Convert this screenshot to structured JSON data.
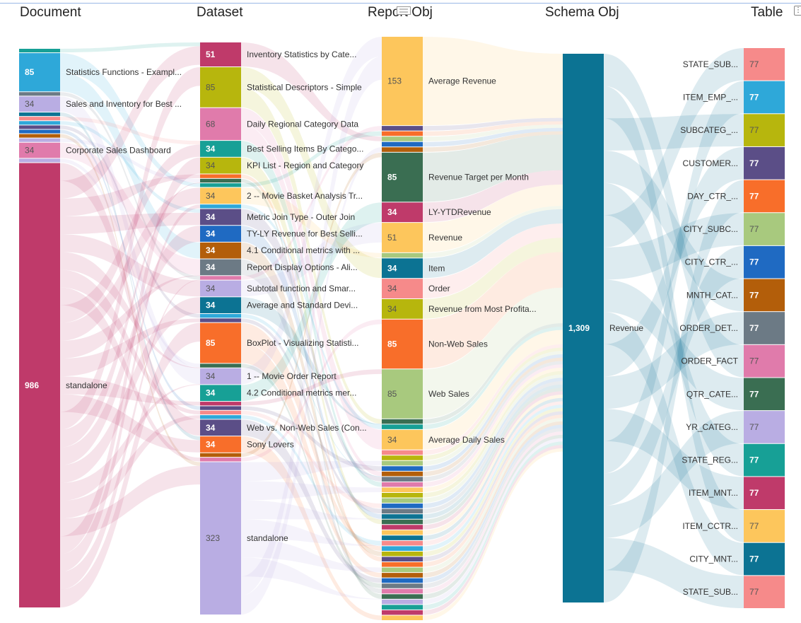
{
  "header": {
    "columns": [
      "Document",
      "Dataset",
      "Report Obj",
      "Schema Obj",
      "Table"
    ],
    "menu_icon": "more-options-icon",
    "drag_icon": "drag-handle-icon"
  },
  "chart_data": {
    "type": "sankey",
    "columns": [
      {
        "title": "Document",
        "nodes": [
          {
            "value": 8,
            "color": "#17a096"
          },
          {
            "value": 85,
            "label": "Statistics Functions - Exampl...",
            "color": "#2ea8d9",
            "show_value": true
          },
          {
            "value": 8,
            "color": "#6c7a85"
          },
          {
            "value": 34,
            "label": "Sales and Inventory for Best ...",
            "color": "#b9ade3",
            "show_value": true
          },
          {
            "value": 8,
            "color": "#0c7393"
          },
          {
            "value": 8,
            "color": "#f68a8a"
          },
          {
            "value": 8,
            "color": "#2ea8d9"
          },
          {
            "value": 8,
            "color": "#5b4e87"
          },
          {
            "value": 8,
            "color": "#1f6ac2"
          },
          {
            "value": 8,
            "color": "#b35e0a"
          },
          {
            "value": 8,
            "color": "#b9ade3"
          },
          {
            "value": 34,
            "label": "Corporate Sales Dashboard",
            "color": "#e07bab",
            "show_value": true
          },
          {
            "value": 8,
            "color": "#b9ade3"
          },
          {
            "value": 986,
            "label": "standalone",
            "color": "#bf3a6a",
            "show_value": true
          }
        ]
      },
      {
        "title": "Dataset",
        "nodes": [
          {
            "value": 51,
            "label": "Inventory Statistics by Cate...",
            "color": "#bf3a6a",
            "show_value": true
          },
          {
            "value": 85,
            "label": "Statistical Descriptors - Simple",
            "color": "#b7b60d",
            "show_value": true
          },
          {
            "value": 68,
            "label": "Daily Regional Category Data",
            "color": "#e07bab",
            "show_value": true
          },
          {
            "value": 34,
            "label": "Best Selling Items By Catego...",
            "color": "#17a096",
            "show_value": true
          },
          {
            "value": 34,
            "label": "KPI List - Region and Category",
            "color": "#b7b60d",
            "show_value": true
          },
          {
            "value": 8,
            "color": "#f86e2a"
          },
          {
            "value": 8,
            "color": "#3a6e52"
          },
          {
            "value": 8,
            "color": "#17a096"
          },
          {
            "value": 34,
            "label": "2 -- Movie Basket Analysis Tr...",
            "color": "#fdc65c",
            "show_value": true
          },
          {
            "value": 8,
            "color": "#2ea8d9"
          },
          {
            "value": 34,
            "label": "Metric Join Type - Outer Join",
            "color": "#5b4e87",
            "show_value": true
          },
          {
            "value": 34,
            "label": "TY-LY Revenue for Best Selli...",
            "color": "#1f6ac2",
            "show_value": true
          },
          {
            "value": 34,
            "label": "4.1 Conditional metrics with ...",
            "color": "#b35e0a",
            "show_value": true
          },
          {
            "value": 34,
            "label": "Report Display Options - Ali...",
            "color": "#6c7a85",
            "show_value": true
          },
          {
            "value": 8,
            "color": "#e07bab"
          },
          {
            "value": 34,
            "label": "Subtotal function and Smar...",
            "color": "#b9ade3",
            "show_value": true
          },
          {
            "value": 34,
            "label": "Average and Standard Devi...",
            "color": "#0c7393",
            "show_value": true
          },
          {
            "value": 8,
            "color": "#2ea8d9"
          },
          {
            "value": 8,
            "color": "#5b4e87"
          },
          {
            "value": 85,
            "label": "BoxPlot - Visualizing Statisti...",
            "color": "#f86e2a",
            "show_value": true
          },
          {
            "value": 8,
            "color": "#3a6e52"
          },
          {
            "value": 34,
            "label": "1 -- Movie Order Report",
            "color": "#b9ade3",
            "show_value": true
          },
          {
            "value": 34,
            "label": "4.2 Conditional metrics mer...",
            "color": "#17a096",
            "show_value": true
          },
          {
            "value": 8,
            "color": "#bf3a6a"
          },
          {
            "value": 8,
            "color": "#5b4e87"
          },
          {
            "value": 8,
            "color": "#f68a8a"
          },
          {
            "value": 8,
            "color": "#2ea8d9"
          },
          {
            "value": 34,
            "label": "Web vs. Non-Web Sales (Con...",
            "color": "#5b4e87",
            "show_value": true
          },
          {
            "value": 34,
            "label": "Sony Lovers",
            "color": "#f86e2a",
            "show_value": true
          },
          {
            "value": 8,
            "color": "#b35e0a"
          },
          {
            "value": 8,
            "color": "#e07bab"
          },
          {
            "value": 323,
            "label": "standalone",
            "color": "#b9ade3",
            "show_value": true
          }
        ]
      },
      {
        "title": "Report Obj",
        "nodes": [
          {
            "value": 153,
            "label": "Average Revenue",
            "color": "#fdc65c",
            "show_value": true
          },
          {
            "value": 8,
            "color": "#5b4e87"
          },
          {
            "value": 8,
            "color": "#f86e2a"
          },
          {
            "value": 8,
            "color": "#a8c97e"
          },
          {
            "value": 8,
            "color": "#1f6ac2"
          },
          {
            "value": 8,
            "color": "#b35e0a"
          },
          {
            "value": 85,
            "label": "Revenue Target per Month",
            "color": "#3a6e52",
            "show_value": true
          },
          {
            "value": 34,
            "label": "LY-YTDRevenue",
            "color": "#bf3a6a",
            "show_value": true
          },
          {
            "value": 51,
            "label": "Revenue",
            "color": "#fdc65c",
            "show_value": true
          },
          {
            "value": 8,
            "color": "#a8c97e"
          },
          {
            "value": 34,
            "label": "Item",
            "color": "#0c7393",
            "show_value": true
          },
          {
            "value": 34,
            "label": "Order",
            "color": "#f68a8a",
            "show_value": true
          },
          {
            "value": 34,
            "label": "Revenue from Most Profita...",
            "color": "#b7b60d",
            "show_value": true
          },
          {
            "value": 85,
            "label": "Non-Web Sales",
            "color": "#f86e2a",
            "show_value": true
          },
          {
            "value": 85,
            "label": "Web Sales",
            "color": "#a8c97e",
            "show_value": true
          },
          {
            "value": 8,
            "color": "#3a6e52"
          },
          {
            "value": 8,
            "color": "#17a096"
          },
          {
            "value": 34,
            "label": "Average Daily Sales",
            "color": "#fdc65c",
            "show_value": true
          },
          {
            "value": 8,
            "color": "#f68a8a"
          },
          {
            "value": 8,
            "color": "#b7b60d"
          },
          {
            "value": 8,
            "color": "#a8c97e"
          },
          {
            "value": 8,
            "color": "#1f6ac2"
          },
          {
            "value": 8,
            "color": "#b35e0a"
          },
          {
            "value": 8,
            "color": "#6c7a85"
          },
          {
            "value": 8,
            "color": "#e07bab"
          },
          {
            "value": 8,
            "color": "#fdc65c"
          },
          {
            "value": 8,
            "color": "#b7b60d"
          },
          {
            "value": 8,
            "color": "#a8c97e"
          },
          {
            "value": 8,
            "color": "#1f6ac2"
          },
          {
            "value": 8,
            "color": "#6c7a85"
          },
          {
            "value": 8,
            "color": "#0c7393"
          },
          {
            "value": 8,
            "color": "#3a6e52"
          },
          {
            "value": 8,
            "color": "#bf3a6a"
          },
          {
            "value": 8,
            "color": "#fdc65c"
          },
          {
            "value": 8,
            "color": "#0c7393"
          },
          {
            "value": 8,
            "color": "#f68a8a"
          },
          {
            "value": 8,
            "color": "#2ea8d9"
          },
          {
            "value": 8,
            "color": "#b7b60d"
          },
          {
            "value": 8,
            "color": "#5b4e87"
          },
          {
            "value": 8,
            "color": "#f86e2a"
          },
          {
            "value": 8,
            "color": "#a8c97e"
          },
          {
            "value": 8,
            "color": "#b35e0a"
          },
          {
            "value": 8,
            "color": "#1f6ac2"
          },
          {
            "value": 8,
            "color": "#6c7a85"
          },
          {
            "value": 8,
            "color": "#e07bab"
          },
          {
            "value": 8,
            "color": "#3a6e52"
          },
          {
            "value": 8,
            "color": "#b9ade3"
          },
          {
            "value": 8,
            "color": "#17a096"
          },
          {
            "value": 8,
            "color": "#bf3a6a"
          },
          {
            "value": 8,
            "color": "#fdc65c"
          }
        ]
      },
      {
        "title": "Schema Obj",
        "nodes": [
          {
            "value": 1309,
            "label": "Revenue",
            "color": "#0c7393",
            "show_value": true
          }
        ]
      },
      {
        "title": "Table",
        "nodes": [
          {
            "value": 77,
            "label": "STATE_SUB...",
            "color": "#f68a8a",
            "show_value": true
          },
          {
            "value": 77,
            "label": "ITEM_EMP_...",
            "color": "#2ea8d9",
            "show_value": true
          },
          {
            "value": 77,
            "label": "SUBCATEG_...",
            "color": "#b7b60d",
            "show_value": true
          },
          {
            "value": 77,
            "label": "CUSTOMER...",
            "color": "#5b4e87",
            "show_value": true
          },
          {
            "value": 77,
            "label": "DAY_CTR_...",
            "color": "#f86e2a",
            "show_value": true
          },
          {
            "value": 77,
            "label": "CITY_SUBC...",
            "color": "#a8c97e",
            "show_value": true
          },
          {
            "value": 77,
            "label": "CITY_CTR_...",
            "color": "#1f6ac2",
            "show_value": true
          },
          {
            "value": 77,
            "label": "MNTH_CAT...",
            "color": "#b35e0a",
            "show_value": true
          },
          {
            "value": 77,
            "label": "ORDER_DET...",
            "color": "#6c7a85",
            "show_value": true
          },
          {
            "value": 77,
            "label": "ORDER_FACT",
            "color": "#e07bab",
            "show_value": true
          },
          {
            "value": 77,
            "label": "QTR_CATE...",
            "color": "#3a6e52",
            "show_value": true
          },
          {
            "value": 77,
            "label": "YR_CATEG...",
            "color": "#b9ade3",
            "show_value": true
          },
          {
            "value": 77,
            "label": "STATE_REG...",
            "color": "#17a096",
            "show_value": true
          },
          {
            "value": 77,
            "label": "ITEM_MNT...",
            "color": "#bf3a6a",
            "show_value": true
          },
          {
            "value": 77,
            "label": "ITEM_CCTR...",
            "color": "#fdc65c",
            "show_value": true
          },
          {
            "value": 77,
            "label": "CITY_MNT...",
            "color": "#0c7393",
            "show_value": true
          },
          {
            "value": 77,
            "label": "STATE_SUB...",
            "color": "#f68a8a",
            "show_value": true
          }
        ]
      }
    ]
  }
}
